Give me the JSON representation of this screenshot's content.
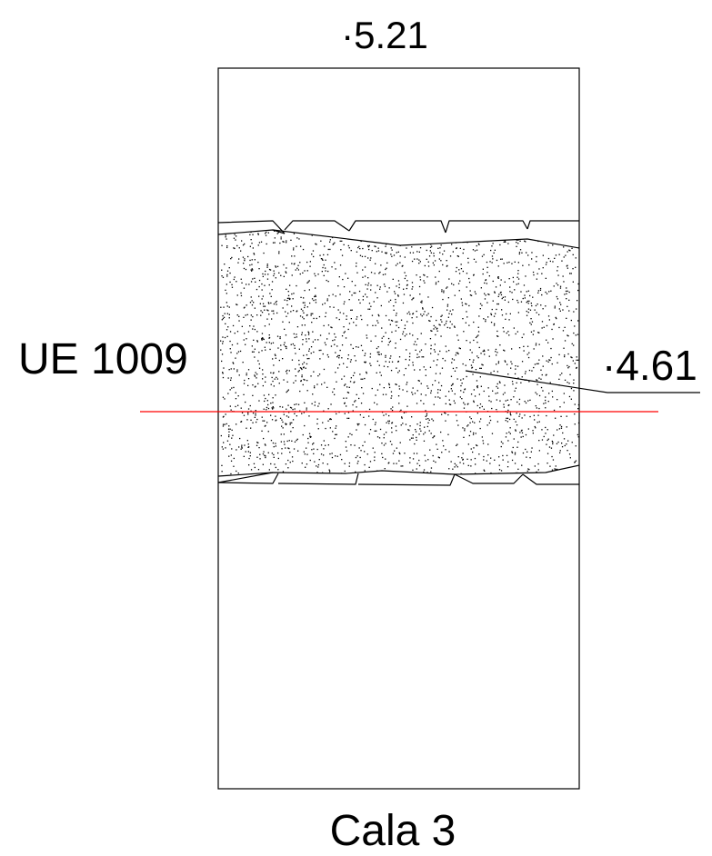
{
  "top_elevation": "·5.21",
  "layer_label": "UE 1009",
  "layer_elevation": "·4.61",
  "trench_name": "Cala 3",
  "colors": {
    "outline": "#000000",
    "reference_line": "#ff0000",
    "background": "#ffffff"
  }
}
